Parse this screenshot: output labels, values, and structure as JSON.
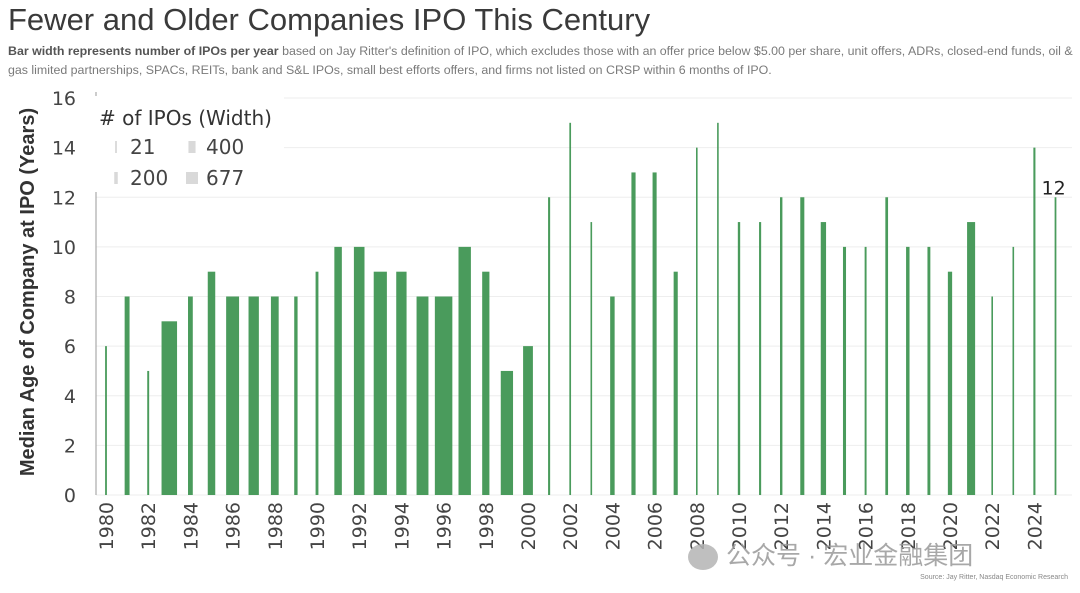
{
  "title": "Fewer and Older Companies IPO This Century",
  "subtitle_bold": "Bar width represents number of IPOs per year",
  "subtitle_rest": " based on Jay Ritter's definition of IPO, which excludes those with an offer price below $5.00 per share, unit offers, ADRs, closed-end funds, oil & gas limited partnerships, SPACs, REITs, bank and S&L IPOs, small best efforts offers, and firms not listed on CRSP within 6 months of IPO.",
  "source": "Source: Jay Ritter, Nasdaq Economic Research",
  "watermark": "公众号 · 宏业金融集团",
  "bar_color": "#4a9b5c",
  "chart_data": {
    "type": "bar",
    "title": "Fewer and Older Companies IPO This Century",
    "ylabel": "Median Age of Company at IPO (Years)",
    "xlabel": "",
    "ylim": [
      0,
      16
    ],
    "yticks": [
      "0",
      "2",
      "4",
      "6",
      "8",
      "10",
      "12",
      "14",
      "16"
    ],
    "grid": "horizontal",
    "legend_title": "# of IPOs (Width)",
    "legend_position": "top-left",
    "legend_items": [
      {
        "label": "21",
        "value": 21
      },
      {
        "label": "400",
        "value": 400
      },
      {
        "label": "200",
        "value": 200
      },
      {
        "label": "677",
        "value": 677
      }
    ],
    "categories": [
      "1980",
      "1981",
      "1982",
      "1983",
      "1984",
      "1985",
      "1986",
      "1987",
      "1988",
      "1989",
      "1990",
      "1991",
      "1992",
      "1993",
      "1994",
      "1995",
      "1996",
      "1997",
      "1998",
      "1999",
      "2000",
      "2001",
      "2002",
      "2003",
      "2004",
      "2005",
      "2006",
      "2007",
      "2008",
      "2009",
      "2010",
      "2011",
      "2012",
      "2013",
      "2014",
      "2015",
      "2016",
      "2017",
      "2018",
      "2019",
      "2020",
      "2021",
      "2022",
      "2023",
      "2024",
      "2025"
    ],
    "xtick_labels": [
      "1980",
      "1982",
      "1984",
      "1986",
      "1988",
      "1990",
      "1992",
      "1994",
      "1996",
      "1998",
      "2000",
      "2002",
      "2004",
      "2006",
      "2008",
      "2010",
      "2012",
      "2014",
      "2016",
      "2018",
      "2020",
      "2022",
      "2024"
    ],
    "values": [
      6,
      8,
      5,
      7,
      8,
      9,
      8,
      8,
      8,
      8,
      9,
      10,
      10,
      9,
      9,
      8,
      8,
      10,
      9,
      5,
      6,
      12,
      15,
      11,
      8,
      13,
      13,
      9,
      14,
      15,
      11,
      11,
      12,
      12,
      11,
      10,
      10,
      12,
      10,
      10,
      9,
      11,
      8,
      10,
      14,
      12
    ],
    "ipo_counts": [
      70,
      190,
      75,
      600,
      185,
      290,
      500,
      400,
      300,
      130,
      110,
      290,
      410,
      510,
      400,
      460,
      677,
      480,
      280,
      475,
      380,
      80,
      66,
      63,
      173,
      161,
      157,
      159,
      21,
      41,
      91,
      81,
      93,
      157,
      206,
      118,
      75,
      105,
      134,
      112,
      165,
      311,
      38,
      54,
      80,
      68
    ],
    "data_labels": [
      {
        "category": "2025",
        "text": "12"
      }
    ]
  }
}
